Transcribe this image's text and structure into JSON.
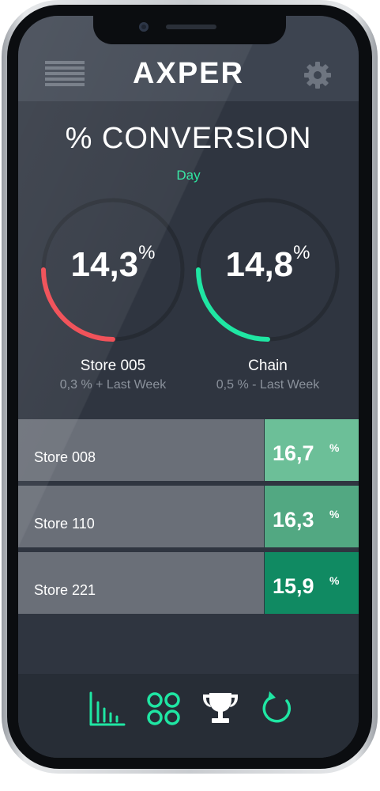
{
  "header": {
    "brand": "AXPER",
    "menu_icon": "hamburger-menu-icon",
    "settings_icon": "gear-icon"
  },
  "main": {
    "title": "% CONVERSION",
    "period": "Day",
    "gauges": [
      {
        "name": "Store 005",
        "value": "14,3",
        "unit": "%",
        "comparison": "0,3 % + Last Week",
        "level": 0.25,
        "color": "#f0474f"
      },
      {
        "name": "Chain",
        "value": "14,8",
        "unit": "%",
        "comparison": "0,5 % - Last Week",
        "level": 0.25,
        "color": "#1fe6a3"
      }
    ],
    "ranking": [
      {
        "store": "Store 008",
        "value": "16,7",
        "unit": "%",
        "color": "#6cbf98"
      },
      {
        "store": "Store 110",
        "value": "16,3",
        "unit": "%",
        "color": "#52a882"
      },
      {
        "store": "Store 221",
        "value": "15,9",
        "unit": "%",
        "color": "#108a62"
      }
    ]
  },
  "bottom_nav": [
    {
      "icon": "bar-chart-icon"
    },
    {
      "icon": "grid-icon"
    },
    {
      "icon": "trophy-icon"
    },
    {
      "icon": "refresh-icon"
    }
  ],
  "colors": {
    "accent": "#2de6a0",
    "background": "#2f3540",
    "header": "#3d4450"
  }
}
